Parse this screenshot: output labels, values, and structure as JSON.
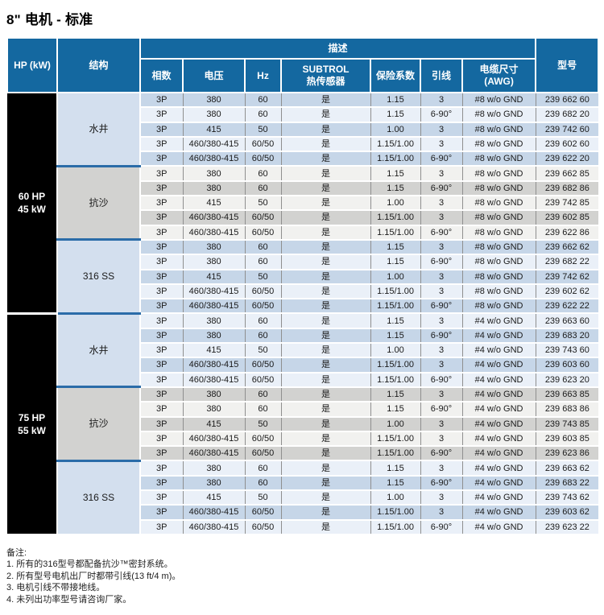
{
  "title": "8\" 电机 - 标准",
  "colors": {
    "header-blue": "#1468a0",
    "divider-blue": "#2b6ca8",
    "row-blue-shaded": "#c6d6e8",
    "row-blue-light": "#eaf0f8",
    "row-gray-shaded": "#d2d2d0",
    "row-gray-light": "#f1f1ef",
    "struct-blue": "#d3dfee",
    "struct-gray": "#d2d2d0",
    "hp-black": "#000000"
  },
  "table": {
    "header": {
      "hp": "HP (kW)",
      "structure": "结构",
      "description": "描述",
      "model": "型号",
      "sub": [
        "相数",
        "电压",
        "Hz",
        "SUBTROL\n热传感器",
        "保险系数",
        "引线",
        "电缆尺寸\n(AWG)"
      ]
    },
    "column_names": [
      "phase",
      "voltage",
      "hz",
      "subtrol",
      "service-factor",
      "leads",
      "cable-size",
      "model"
    ],
    "groups": [
      {
        "hp": "60 HP",
        "kw": "45 kW",
        "sections": [
          {
            "structure": "水井",
            "theme": "blue",
            "rows": [
              [
                "3P",
                "380",
                "60",
                "是",
                "1.15",
                "3",
                "#8 w/o GND",
                "239 662 60"
              ],
              [
                "3P",
                "380",
                "60",
                "是",
                "1.15",
                "6-90°",
                "#8 w/o GND",
                "239 682 20"
              ],
              [
                "3P",
                "415",
                "50",
                "是",
                "1.00",
                "3",
                "#8 w/o GND",
                "239 742 60"
              ],
              [
                "3P",
                "460/380-415",
                "60/50",
                "是",
                "1.15/1.00",
                "3",
                "#8 w/o GND",
                "239 602 60"
              ],
              [
                "3P",
                "460/380-415",
                "60/50",
                "是",
                "1.15/1.00",
                "6-90°",
                "#8 w/o GND",
                "239 622 20"
              ]
            ]
          },
          {
            "structure": "抗沙",
            "theme": "gray",
            "rows": [
              [
                "3P",
                "380",
                "60",
                "是",
                "1.15",
                "3",
                "#8 w/o GND",
                "239 662 85"
              ],
              [
                "3P",
                "380",
                "60",
                "是",
                "1.15",
                "6-90°",
                "#8 w/o GND",
                "239 682 86"
              ],
              [
                "3P",
                "415",
                "50",
                "是",
                "1.00",
                "3",
                "#8 w/o GND",
                "239 742 85"
              ],
              [
                "3P",
                "460/380-415",
                "60/50",
                "是",
                "1.15/1.00",
                "3",
                "#8 w/o GND",
                "239 602 85"
              ],
              [
                "3P",
                "460/380-415",
                "60/50",
                "是",
                "1.15/1.00",
                "6-90°",
                "#8 w/o GND",
                "239 622 86"
              ]
            ]
          },
          {
            "structure": "316 SS",
            "theme": "blue",
            "rows": [
              [
                "3P",
                "380",
                "60",
                "是",
                "1.15",
                "3",
                "#8 w/o GND",
                "239 662 62"
              ],
              [
                "3P",
                "380",
                "60",
                "是",
                "1.15",
                "6-90°",
                "#8 w/o GND",
                "239 682 22"
              ],
              [
                "3P",
                "415",
                "50",
                "是",
                "1.00",
                "3",
                "#8 w/o GND",
                "239 742 62"
              ],
              [
                "3P",
                "460/380-415",
                "60/50",
                "是",
                "1.15/1.00",
                "3",
                "#8 w/o GND",
                "239 602 62"
              ],
              [
                "3P",
                "460/380-415",
                "60/50",
                "是",
                "1.15/1.00",
                "6-90°",
                "#8 w/o GND",
                "239 622 22"
              ]
            ]
          }
        ]
      },
      {
        "hp": "75 HP",
        "kw": "55 kW",
        "sections": [
          {
            "structure": "水井",
            "theme": "blue",
            "rows": [
              [
                "3P",
                "380",
                "60",
                "是",
                "1.15",
                "3",
                "#4 w/o GND",
                "239 663 60"
              ],
              [
                "3P",
                "380",
                "60",
                "是",
                "1.15",
                "6-90°",
                "#4 w/o GND",
                "239 683 20"
              ],
              [
                "3P",
                "415",
                "50",
                "是",
                "1.00",
                "3",
                "#4 w/o GND",
                "239 743 60"
              ],
              [
                "3P",
                "460/380-415",
                "60/50",
                "是",
                "1.15/1.00",
                "3",
                "#4 w/o GND",
                "239 603 60"
              ],
              [
                "3P",
                "460/380-415",
                "60/50",
                "是",
                "1.15/1.00",
                "6-90°",
                "#4 w/o GND",
                "239 623 20"
              ]
            ]
          },
          {
            "structure": "抗沙",
            "theme": "gray",
            "rows": [
              [
                "3P",
                "380",
                "60",
                "是",
                "1.15",
                "3",
                "#4 w/o GND",
                "239 663 85"
              ],
              [
                "3P",
                "380",
                "60",
                "是",
                "1.15",
                "6-90°",
                "#4 w/o GND",
                "239 683 86"
              ],
              [
                "3P",
                "415",
                "50",
                "是",
                "1.00",
                "3",
                "#4 w/o GND",
                "239 743 85"
              ],
              [
                "3P",
                "460/380-415",
                "60/50",
                "是",
                "1.15/1.00",
                "3",
                "#4 w/o GND",
                "239 603 85"
              ],
              [
                "3P",
                "460/380-415",
                "60/50",
                "是",
                "1.15/1.00",
                "6-90°",
                "#4 w/o GND",
                "239 623 86"
              ]
            ]
          },
          {
            "structure": "316 SS",
            "theme": "blue",
            "rows": [
              [
                "3P",
                "380",
                "60",
                "是",
                "1.15",
                "3",
                "#4 w/o GND",
                "239 663 62"
              ],
              [
                "3P",
                "380",
                "60",
                "是",
                "1.15",
                "6-90°",
                "#4 w/o GND",
                "239 683 22"
              ],
              [
                "3P",
                "415",
                "50",
                "是",
                "1.00",
                "3",
                "#4 w/o GND",
                "239 743 62"
              ],
              [
                "3P",
                "460/380-415",
                "60/50",
                "是",
                "1.15/1.00",
                "3",
                "#4 w/o GND",
                "239 603 62"
              ],
              [
                "3P",
                "460/380-415",
                "60/50",
                "是",
                "1.15/1.00",
                "6-90°",
                "#4 w/o GND",
                "239 623 22"
              ]
            ]
          }
        ]
      }
    ]
  },
  "notes": {
    "title": "备注:",
    "items": [
      "1. 所有的316型号都配备抗沙™密封系统。",
      "2. 所有型号电机出厂时都带引线(13 ft/4 m)。",
      "3. 电机引线不带接地线。",
      "4. 未列出功率型号请咨询厂家。"
    ]
  }
}
